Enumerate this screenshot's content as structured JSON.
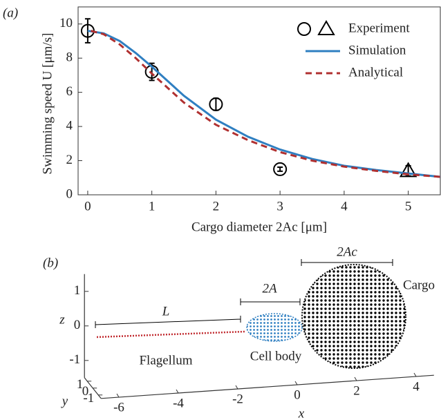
{
  "chart_data": [
    {
      "type": "line",
      "title": "(a)",
      "xlabel": "Cargo diameter 2Ac [μm]",
      "ylabel": "Swimming speed U [μm/s]",
      "xlim": [
        -0.15,
        5.5
      ],
      "ylim": [
        0,
        11
      ],
      "xticks": [
        0,
        1,
        2,
        3,
        4,
        5
      ],
      "yticks": [
        0,
        2,
        4,
        6,
        8,
        10
      ],
      "legend": "upper right",
      "series": [
        {
          "name": "Experiment",
          "color": "#000000",
          "style": "markers",
          "markers": [
            "circle",
            "circle",
            "circle",
            "circle",
            "triangle"
          ],
          "x": [
            0,
            1,
            2,
            3,
            5
          ],
          "values": [
            9.6,
            7.2,
            5.3,
            1.5,
            1.4
          ],
          "errors": [
            0.7,
            0.5,
            0.35,
            0.12,
            0.3
          ]
        },
        {
          "name": "Simulation",
          "color": "#2f7fc1",
          "style": "solid",
          "x": [
            0,
            0.25,
            0.5,
            0.75,
            1,
            1.5,
            2,
            2.5,
            3,
            3.5,
            4,
            4.5,
            5,
            5.5
          ],
          "values": [
            9.6,
            9.45,
            9.0,
            8.3,
            7.5,
            5.8,
            4.4,
            3.4,
            2.65,
            2.1,
            1.7,
            1.45,
            1.25,
            1.05
          ]
        },
        {
          "name": "Analytical",
          "color": "#b03030",
          "style": "dashed",
          "x": [
            0.05,
            0.25,
            0.5,
            0.75,
            1,
            1.5,
            2,
            2.5,
            3,
            3.5,
            4,
            4.5,
            5,
            5.5
          ],
          "values": [
            9.6,
            9.4,
            8.8,
            8.0,
            7.1,
            5.4,
            4.1,
            3.2,
            2.5,
            2.0,
            1.65,
            1.4,
            1.2,
            1.05
          ]
        }
      ]
    },
    {
      "type": "schematic-3d",
      "title": "(b)",
      "xlabel": "x",
      "ylabel": "y",
      "zlabel": "z",
      "xlim": [
        -6.6,
        4.6
      ],
      "ylim": [
        -1.5,
        1.5
      ],
      "zlim": [
        -1.5,
        1.5
      ],
      "xticks": [
        -6,
        -4,
        -2,
        0,
        2,
        4
      ],
      "yticks": [
        1,
        0,
        -1
      ],
      "zticks": [
        1,
        0,
        -1
      ],
      "annotations": [
        "L",
        "2A",
        "2Ac",
        "Cargo",
        "Flagellum",
        "Cell body"
      ]
    }
  ]
}
